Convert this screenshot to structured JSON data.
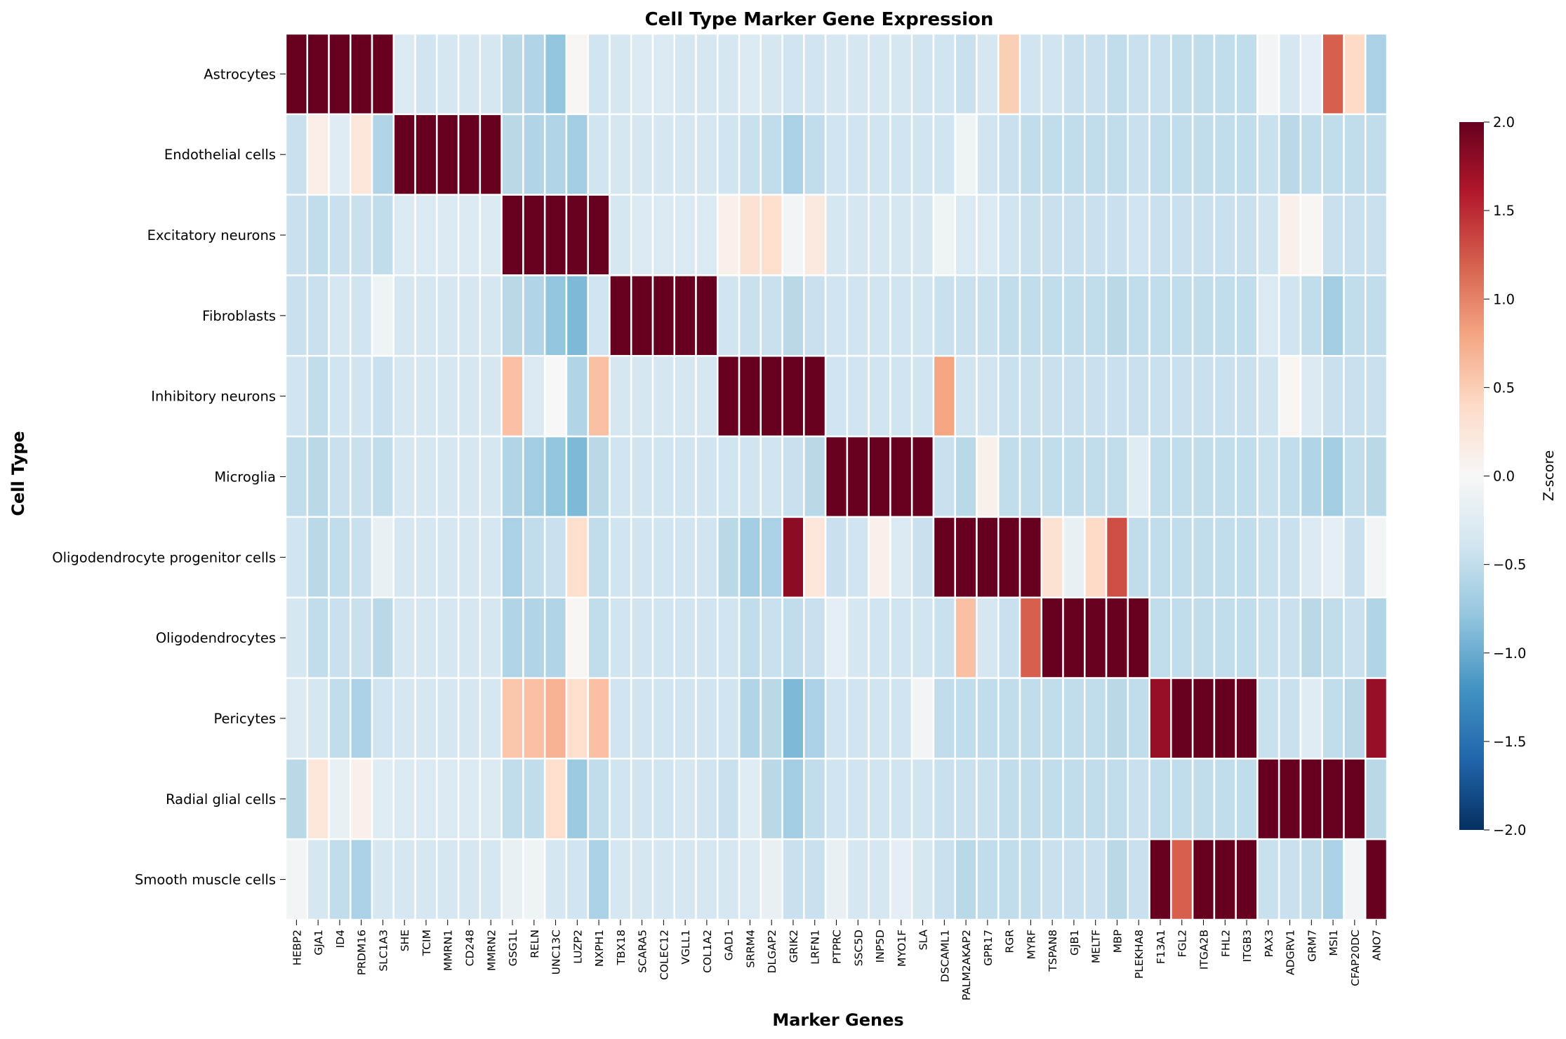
{
  "chart_data": {
    "type": "heatmap",
    "title": "Cell Type Marker Gene Expression",
    "xlabel": "Marker Genes",
    "ylabel": "Cell Type",
    "colorbar_label": "Z-score",
    "colormap": "RdBu_r",
    "vmin": -2.0,
    "vmax": 2.0,
    "colorbar_ticks": [
      "2.0",
      "1.5",
      "1.0",
      "0.5",
      "0.0",
      "−0.5",
      "−1.0",
      "−1.5",
      "−2.0"
    ],
    "colorbar_tick_values": [
      2.0,
      1.5,
      1.0,
      0.5,
      0.0,
      -0.5,
      -1.0,
      -1.5,
      -2.0
    ],
    "grid": "white cell borders",
    "genes": [
      "HEBP2",
      "GJA1",
      "ID4",
      "PRDM16",
      "SLC1A3",
      "SHE",
      "TCIM",
      "MMRN1",
      "CD248",
      "MMRN2",
      "GSG1L",
      "RELN",
      "UNC13C",
      "LUZP2",
      "NXPH1",
      "TBX18",
      "SCARA5",
      "COLEC12",
      "VGLL1",
      "COL1A2",
      "GAD1",
      "SRRM4",
      "DLGAP2",
      "GRIK2",
      "LRFN1",
      "PTPRC",
      "SSC5D",
      "INP5D",
      "MYO1F",
      "SLA",
      "DSCAML1",
      "PALM2AKAP2",
      "GPR17",
      "RGR",
      "MYRF",
      "TSPAN8",
      "GJB1",
      "MELTF",
      "MBP",
      "PLEKHA8",
      "F13A1",
      "FGL2",
      "ITGA2B",
      "FHL2",
      "ITGB3",
      "PAX3",
      "ADGRV1",
      "GRM7",
      "MSI1",
      "CFAP20DC",
      "ANO7"
    ],
    "cell_types": [
      "Astrocytes",
      "Endothelial cells",
      "Excitatory neurons",
      "Fibroblasts",
      "Inhibitory neurons",
      "Microglia",
      "Oligodendrocyte progenitor cells",
      "Oligodendrocytes",
      "Pericytes",
      "Radial glial cells",
      "Smooth muscle cells"
    ],
    "values": [
      [
        2.0,
        2.0,
        2.0,
        2.0,
        2.0,
        -0.3,
        -0.4,
        -0.35,
        -0.35,
        -0.35,
        -0.55,
        -0.6,
        -0.8,
        0.05,
        -0.4,
        -0.35,
        -0.3,
        -0.3,
        -0.35,
        -0.35,
        -0.35,
        -0.3,
        -0.35,
        -0.4,
        -0.4,
        -0.35,
        -0.35,
        -0.35,
        -0.35,
        -0.4,
        -0.4,
        -0.45,
        -0.35,
        0.5,
        -0.4,
        -0.4,
        -0.45,
        -0.45,
        -0.5,
        -0.45,
        -0.45,
        -0.5,
        -0.5,
        -0.5,
        -0.5,
        -0.05,
        -0.35,
        -0.2,
        1.2,
        0.4,
        -0.65
      ],
      [
        -0.45,
        0.15,
        -0.25,
        0.25,
        -0.6,
        2.0,
        2.0,
        2.0,
        2.0,
        2.0,
        -0.55,
        -0.6,
        -0.6,
        -0.7,
        -0.4,
        -0.35,
        -0.35,
        -0.35,
        -0.35,
        -0.35,
        -0.4,
        -0.45,
        -0.5,
        -0.65,
        -0.5,
        -0.4,
        -0.4,
        -0.4,
        -0.4,
        -0.4,
        -0.4,
        -0.1,
        -0.4,
        -0.45,
        -0.5,
        -0.5,
        -0.5,
        -0.5,
        -0.5,
        -0.45,
        -0.5,
        -0.5,
        -0.5,
        -0.5,
        -0.5,
        -0.45,
        -0.55,
        -0.5,
        -0.5,
        -0.5,
        -0.5
      ],
      [
        -0.45,
        -0.5,
        -0.45,
        -0.45,
        -0.5,
        -0.3,
        -0.3,
        -0.3,
        -0.3,
        -0.3,
        2.0,
        2.0,
        2.0,
        2.0,
        2.0,
        -0.35,
        -0.3,
        -0.3,
        -0.3,
        -0.3,
        0.1,
        0.3,
        0.35,
        -0.05,
        0.2,
        -0.35,
        -0.35,
        -0.35,
        -0.35,
        -0.35,
        -0.1,
        -0.3,
        -0.3,
        -0.4,
        -0.45,
        -0.45,
        -0.45,
        -0.45,
        -0.45,
        -0.4,
        -0.45,
        -0.45,
        -0.45,
        -0.45,
        -0.45,
        -0.4,
        0.1,
        0.05,
        -0.45,
        -0.45,
        -0.45
      ],
      [
        -0.45,
        -0.45,
        -0.35,
        -0.4,
        -0.1,
        -0.35,
        -0.35,
        -0.35,
        -0.35,
        -0.35,
        -0.55,
        -0.6,
        -0.8,
        -0.9,
        -0.4,
        2.0,
        2.0,
        2.0,
        2.0,
        2.0,
        -0.4,
        -0.45,
        -0.45,
        -0.55,
        -0.45,
        -0.4,
        -0.4,
        -0.4,
        -0.4,
        -0.4,
        -0.45,
        -0.45,
        -0.45,
        -0.5,
        -0.5,
        -0.5,
        -0.5,
        -0.5,
        -0.55,
        -0.5,
        -0.5,
        -0.5,
        -0.5,
        -0.5,
        -0.5,
        -0.3,
        -0.4,
        -0.5,
        -0.7,
        -0.5,
        -0.5
      ],
      [
        -0.4,
        -0.5,
        -0.4,
        -0.4,
        -0.45,
        -0.35,
        -0.35,
        -0.35,
        -0.35,
        -0.35,
        0.6,
        -0.3,
        0.0,
        -0.6,
        0.6,
        -0.35,
        -0.35,
        -0.35,
        -0.35,
        -0.35,
        2.0,
        2.0,
        2.0,
        2.0,
        2.0,
        -0.4,
        -0.4,
        -0.4,
        -0.4,
        -0.4,
        0.8,
        -0.4,
        -0.4,
        -0.45,
        -0.45,
        -0.45,
        -0.45,
        -0.45,
        -0.45,
        -0.45,
        -0.45,
        -0.45,
        -0.45,
        -0.45,
        -0.45,
        -0.4,
        0.05,
        -0.3,
        -0.45,
        -0.45,
        -0.45
      ],
      [
        -0.5,
        -0.55,
        -0.45,
        -0.45,
        -0.5,
        -0.35,
        -0.35,
        -0.35,
        -0.35,
        -0.35,
        -0.6,
        -0.7,
        -0.8,
        -0.9,
        -0.55,
        -0.4,
        -0.4,
        -0.4,
        -0.4,
        -0.4,
        -0.4,
        -0.4,
        -0.4,
        -0.45,
        -0.55,
        2.0,
        2.0,
        2.0,
        2.0,
        2.0,
        -0.45,
        -0.55,
        0.1,
        -0.5,
        -0.5,
        -0.5,
        -0.5,
        -0.5,
        -0.5,
        -0.25,
        -0.5,
        -0.5,
        -0.5,
        -0.5,
        -0.5,
        -0.45,
        -0.5,
        -0.6,
        -0.7,
        -0.5,
        -0.55
      ],
      [
        -0.4,
        -0.55,
        -0.5,
        -0.45,
        -0.15,
        -0.35,
        -0.35,
        -0.35,
        -0.35,
        -0.35,
        -0.65,
        -0.5,
        -0.45,
        0.35,
        -0.5,
        -0.4,
        -0.4,
        -0.4,
        -0.4,
        -0.4,
        -0.55,
        -0.7,
        -0.65,
        1.8,
        0.25,
        -0.45,
        -0.4,
        0.1,
        -0.3,
        -0.45,
        2.0,
        2.0,
        2.0,
        2.0,
        2.0,
        0.3,
        -0.15,
        0.4,
        1.3,
        -0.5,
        -0.5,
        -0.5,
        -0.5,
        -0.5,
        -0.5,
        -0.45,
        -0.45,
        -0.3,
        -0.2,
        -0.45,
        -0.05
      ],
      [
        -0.35,
        -0.5,
        -0.45,
        -0.45,
        -0.55,
        -0.35,
        -0.35,
        -0.35,
        -0.35,
        -0.35,
        -0.6,
        -0.6,
        -0.6,
        0.05,
        -0.5,
        -0.4,
        -0.4,
        -0.4,
        -0.4,
        -0.4,
        -0.4,
        -0.5,
        -0.45,
        -0.5,
        -0.45,
        -0.2,
        -0.35,
        -0.4,
        -0.4,
        -0.4,
        -0.45,
        0.6,
        -0.35,
        -0.45,
        1.2,
        2.0,
        2.0,
        2.0,
        2.0,
        2.0,
        -0.5,
        -0.5,
        -0.5,
        -0.5,
        -0.5,
        -0.45,
        -0.45,
        -0.55,
        -0.5,
        -0.45,
        -0.6
      ],
      [
        -0.3,
        -0.35,
        -0.5,
        -0.65,
        -0.4,
        -0.35,
        -0.35,
        -0.35,
        -0.35,
        -0.35,
        0.55,
        0.6,
        0.7,
        0.35,
        0.6,
        -0.4,
        -0.4,
        -0.4,
        -0.4,
        -0.4,
        -0.4,
        -0.6,
        -0.55,
        -0.9,
        -0.65,
        -0.4,
        -0.4,
        -0.4,
        -0.4,
        -0.05,
        -0.5,
        -0.5,
        -0.5,
        -0.5,
        -0.5,
        -0.5,
        -0.5,
        -0.5,
        -0.55,
        -0.5,
        1.75,
        2.0,
        2.0,
        2.0,
        2.0,
        -0.45,
        -0.45,
        -0.25,
        -0.5,
        -0.55,
        1.75
      ],
      [
        -0.55,
        0.25,
        -0.15,
        0.1,
        -0.25,
        -0.3,
        -0.3,
        -0.3,
        -0.3,
        -0.3,
        -0.5,
        -0.5,
        0.35,
        -0.75,
        -0.5,
        -0.4,
        -0.4,
        -0.4,
        -0.35,
        -0.4,
        -0.45,
        -0.25,
        -0.55,
        -0.7,
        -0.5,
        -0.4,
        -0.4,
        -0.4,
        -0.4,
        -0.4,
        -0.45,
        -0.45,
        -0.45,
        -0.5,
        -0.5,
        -0.5,
        -0.5,
        -0.5,
        -0.5,
        -0.45,
        -0.5,
        -0.5,
        -0.5,
        -0.5,
        -0.5,
        2.0,
        2.0,
        2.0,
        2.0,
        2.0,
        -0.55
      ],
      [
        -0.05,
        -0.35,
        -0.5,
        -0.65,
        -0.35,
        -0.35,
        -0.35,
        -0.35,
        -0.35,
        -0.35,
        -0.15,
        -0.1,
        -0.35,
        -0.4,
        -0.65,
        -0.35,
        -0.35,
        -0.35,
        -0.35,
        -0.35,
        -0.35,
        -0.3,
        -0.15,
        -0.45,
        -0.45,
        -0.15,
        -0.35,
        -0.35,
        -0.2,
        -0.35,
        -0.45,
        -0.55,
        -0.5,
        -0.5,
        -0.5,
        -0.45,
        -0.45,
        -0.45,
        -0.55,
        -0.45,
        2.0,
        1.2,
        2.0,
        2.0,
        2.0,
        -0.45,
        -0.45,
        -0.5,
        -0.65,
        -0.05,
        2.0
      ]
    ]
  }
}
